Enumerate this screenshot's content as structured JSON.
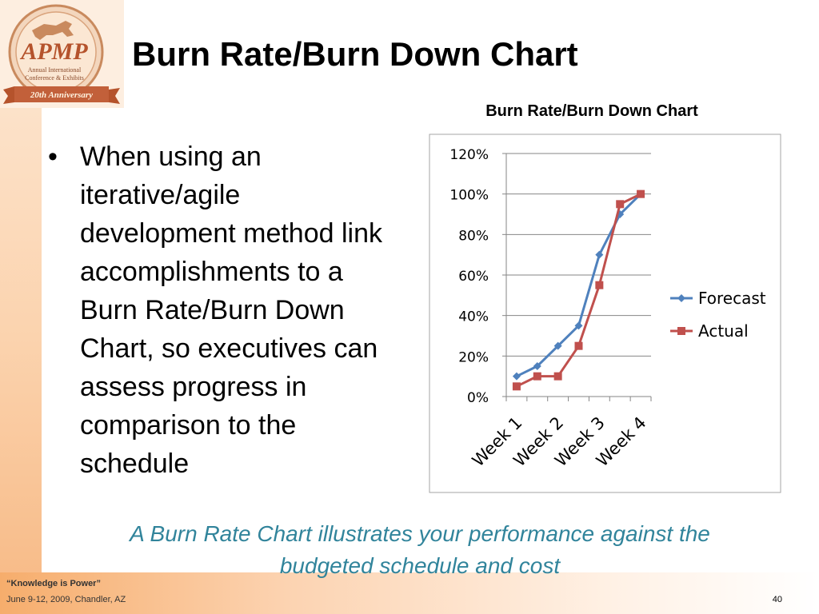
{
  "slide": {
    "title": "Burn Rate/Burn Down Chart",
    "bullet": "When using an iterative/agile development method link accomplishments to a Burn Rate/Burn Down Chart, so executives can assess progress in comparison to the schedule",
    "caption_line1": "A Burn Rate Chart illustrates your performance against the",
    "caption_line2": "budgeted schedule and cost"
  },
  "logo": {
    "brand": "APMP",
    "line1": "Annual International",
    "line2": "Conference & Exhibits",
    "ribbon": "20th Anniversary"
  },
  "footer": {
    "quote": "“Knowledge is Power”",
    "date_location": "June 9-12, 2009, Chandler, AZ",
    "page_number": "40"
  },
  "colors": {
    "forecast": "#4f81bd",
    "actual": "#c0504d",
    "caption": "#31849b",
    "logo_red": "#b5532c"
  },
  "chart_data": {
    "type": "line",
    "title": "Burn Rate/Burn Down Chart",
    "xlabel": "",
    "ylabel": "",
    "categories": [
      "Week 1",
      "",
      "Week 2",
      "",
      "Week 3",
      "",
      "Week 4"
    ],
    "x_tick_labels": [
      "Week 1",
      "Week 2",
      "Week 3",
      "Week 4"
    ],
    "y_ticks": [
      "0%",
      "20%",
      "40%",
      "60%",
      "80%",
      "100%",
      "120%"
    ],
    "ylim": [
      0,
      120
    ],
    "grid": true,
    "legend_position": "right",
    "series": [
      {
        "name": "Forecast",
        "marker": "diamond",
        "values": [
          10,
          15,
          25,
          35,
          70,
          90,
          100
        ]
      },
      {
        "name": "Actual",
        "marker": "square",
        "values": [
          5,
          10,
          10,
          25,
          55,
          95,
          100
        ]
      }
    ]
  }
}
